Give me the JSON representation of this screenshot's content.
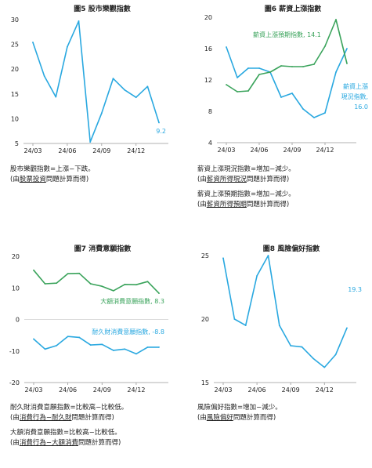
{
  "colors": {
    "blue": "#29a8e0",
    "green": "#3aa35b",
    "axis": "#999999",
    "text": "#222222"
  },
  "chart_data": [
    {
      "type": "line",
      "title": "圖5 股市樂觀指數",
      "categories": [
        "24/03",
        "24/04",
        "24/05",
        "24/06",
        "24/07",
        "24/08",
        "24/09",
        "24/10",
        "24/11",
        "24/12",
        "25/01",
        "25/02"
      ],
      "xticks": [
        "24/03",
        "24/06",
        "24/09",
        "24/12"
      ],
      "ylim": [
        5,
        30
      ],
      "yticks": [
        "5",
        "10",
        "15",
        "20",
        "25",
        "30"
      ],
      "series": [
        {
          "values": [
            25.4,
            18.6,
            14.4,
            24.5,
            29.7,
            5.3,
            11.1,
            18.1,
            15.8,
            14.3,
            16.5,
            9.2
          ],
          "color": "#29a8e0"
        }
      ],
      "annotations": [
        {
          "text": "9.2",
          "color": "#29a8e0"
        }
      ]
    },
    {
      "type": "line",
      "title": "圖6 薪資上漲指數",
      "categories": [
        "24/03",
        "24/04",
        "24/05",
        "24/06",
        "24/07",
        "24/08",
        "24/09",
        "24/10",
        "24/11",
        "24/12",
        "25/01",
        "25/02"
      ],
      "xticks": [
        "24/03",
        "24/06",
        "24/09",
        "24/12"
      ],
      "ylim": [
        4,
        20
      ],
      "yticks": [
        "4",
        "8",
        "12",
        "16",
        "20"
      ],
      "series": [
        {
          "name": "薪資上漲現況指數, 16.0",
          "values": [
            16.2,
            12.3,
            13.5,
            13.5,
            13.0,
            9.8,
            10.3,
            8.3,
            7.2,
            7.8,
            13.0,
            16.0
          ],
          "color": "#29a8e0"
        },
        {
          "name": "薪資上漲預期指數, 14.1",
          "values": [
            11.4,
            10.5,
            10.6,
            12.7,
            13.0,
            13.8,
            13.7,
            13.7,
            14.0,
            16.3,
            19.7,
            14.1
          ],
          "color": "#3aa35b"
        }
      ],
      "annotations": [
        {
          "text": "薪資上漲預期指數, 14.1",
          "color": "#3aa35b"
        },
        {
          "text": "薪資上漲",
          "color": "#29a8e0"
        },
        {
          "text": "現況指數,",
          "color": "#29a8e0"
        },
        {
          "text": "16.0",
          "color": "#29a8e0"
        }
      ]
    },
    {
      "type": "line",
      "title": "圖7 消費意願指數",
      "categories": [
        "24/03",
        "24/04",
        "24/05",
        "24/06",
        "24/07",
        "24/08",
        "24/09",
        "24/10",
        "24/11",
        "24/12",
        "25/01",
        "25/02"
      ],
      "xticks": [
        "24/03",
        "24/06",
        "24/09",
        "24/12"
      ],
      "ylim": [
        -20,
        20
      ],
      "yticks": [
        "-20",
        "-10",
        "0",
        "10",
        "20"
      ],
      "series": [
        {
          "name": "大額消費意願指數, 8.3",
          "values": [
            15.6,
            11.3,
            11.5,
            14.5,
            14.6,
            11.3,
            10.5,
            9.1,
            11.1,
            11.0,
            12.0,
            8.3
          ],
          "color": "#3aa35b"
        },
        {
          "name": "耐久財消費意願指數, -8.8",
          "values": [
            -6.2,
            -9.4,
            -8.3,
            -5.4,
            -5.7,
            -8.1,
            -7.9,
            -9.8,
            -9.4,
            -10.9,
            -8.8,
            -8.8
          ],
          "color": "#29a8e0"
        }
      ],
      "annotations": [
        {
          "text": "大額消費意願指數, 8.3",
          "color": "#3aa35b"
        },
        {
          "text": "耐久財消費意願指數, -8.8",
          "color": "#29a8e0"
        }
      ]
    },
    {
      "type": "line",
      "title": "圖8 風險偏好指數",
      "categories": [
        "24/03",
        "24/04",
        "24/05",
        "24/06",
        "24/07",
        "24/08",
        "24/09",
        "24/10",
        "24/11",
        "24/12",
        "25/01",
        "25/02"
      ],
      "xticks": [
        "24/03",
        "24/06",
        "24/09",
        "24/12"
      ],
      "ylim": [
        15,
        25
      ],
      "yticks": [
        "15",
        "20",
        "25"
      ],
      "series": [
        {
          "values": [
            24.8,
            20.0,
            19.5,
            23.4,
            25.0,
            19.5,
            17.9,
            17.8,
            16.9,
            16.2,
            17.2,
            19.3
          ],
          "color": "#29a8e0"
        }
      ],
      "annotations": [
        {
          "text": "19.3",
          "color": "#29a8e0"
        }
      ]
    }
  ],
  "notes": {
    "n5": {
      "l1": "股市樂觀指數=上漲−下跌。",
      "l2_pre": "(由",
      "l2_u": "股票投資",
      "l2_post": "問題計算而得)"
    },
    "n6": {
      "a1": "薪資上漲現況指數=增加−減少。",
      "a2_pre": "(由",
      "a2_u": "薪資所得現況",
      "a2_post": "問題計算而得)",
      "b1": "薪資上漲預期指數=增加−減少。",
      "b2_pre": "(由",
      "b2_u": "薪資所得預期",
      "b2_post": "問題計算而得)"
    },
    "n7": {
      "a1": "耐久財消費意願指數=比較高−比較低。",
      "a2_pre": "(由",
      "a2_u": "消費行為−耐久財",
      "a2_post": "問題計算而得)",
      "b1": "大額消費意願指數=比較高−比較低。",
      "b2_pre": "(由",
      "b2_u": "消費行為−大額消費",
      "b2_post": "問題計算而得)"
    },
    "n8": {
      "l1": "風險偏好指數=增加−減少。",
      "l2_pre": "(由",
      "l2_u": "風險偏好",
      "l2_post": "問題計算而得)"
    }
  }
}
